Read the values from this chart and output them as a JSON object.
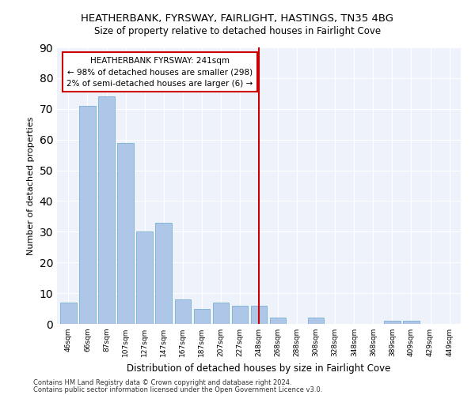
{
  "title1": "HEATHERBANK, FYRSWAY, FAIRLIGHT, HASTINGS, TN35 4BG",
  "title2": "Size of property relative to detached houses in Fairlight Cove",
  "xlabel": "Distribution of detached houses by size in Fairlight Cove",
  "ylabel": "Number of detached properties",
  "categories": [
    "46sqm",
    "66sqm",
    "87sqm",
    "107sqm",
    "127sqm",
    "147sqm",
    "167sqm",
    "187sqm",
    "207sqm",
    "227sqm",
    "248sqm",
    "268sqm",
    "288sqm",
    "308sqm",
    "328sqm",
    "348sqm",
    "368sqm",
    "389sqm",
    "409sqm",
    "429sqm",
    "449sqm"
  ],
  "values": [
    7,
    71,
    74,
    59,
    30,
    33,
    8,
    5,
    7,
    6,
    6,
    2,
    0,
    2,
    0,
    0,
    0,
    1,
    1,
    0,
    0
  ],
  "bar_color": "#aec6e8",
  "bar_edge_color": "#7aaed0",
  "vline_x_index": 10,
  "vline_color": "#cc0000",
  "annotation_title": "HEATHERBANK FYRSWAY: 241sqm",
  "annotation_line1": "← 98% of detached houses are smaller (298)",
  "annotation_line2": "2% of semi-detached houses are larger (6) →",
  "annotation_box_color": "#cc0000",
  "ylim": [
    0,
    90
  ],
  "yticks": [
    0,
    10,
    20,
    30,
    40,
    50,
    60,
    70,
    80,
    90
  ],
  "background_color": "#eef2fb",
  "footer1": "Contains HM Land Registry data © Crown copyright and database right 2024.",
  "footer2": "Contains public sector information licensed under the Open Government Licence v3.0."
}
